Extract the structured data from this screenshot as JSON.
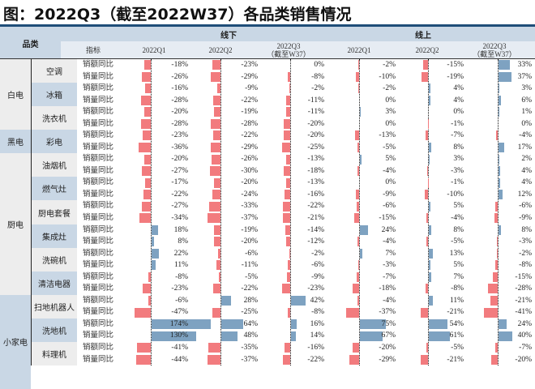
{
  "title": "图：2022Q3（截至2022W37）各品类销售情况",
  "header": {
    "category": "品类",
    "offline": "线下",
    "online": "线上",
    "metric": "指标",
    "columns": [
      {
        "line1": "2022Q1",
        "line2": ""
      },
      {
        "line1": "2022Q2",
        "line2": ""
      },
      {
        "line1": "2022Q3",
        "line2": "（截至W37）"
      },
      {
        "line1": "2022Q1",
        "line2": ""
      },
      {
        "line1": "2022Q2",
        "line2": ""
      },
      {
        "line1": "2022Q3",
        "line2": "（截至W37）"
      }
    ]
  },
  "colors": {
    "negative": "#f27b7e",
    "positive": "#7ea2c1",
    "header_bg": "#c9d7e5",
    "accent_line": "#1f4e79"
  },
  "groups": [
    {
      "name": "白电",
      "rows": 6,
      "bg": "#ededed"
    },
    {
      "name": "黑电",
      "rows": 2,
      "bg": "#c9d7e5"
    },
    {
      "name": "厨电",
      "rows": 12,
      "bg": "#ededed"
    },
    {
      "name": "小家电",
      "rows": 8,
      "bg": "#c9d7e5"
    }
  ],
  "subcategories": [
    {
      "name": "空调",
      "bg": "#ededed"
    },
    {
      "name": "冰箱",
      "bg": "#c9d7e5"
    },
    {
      "name": "洗衣机",
      "bg": "#ededed"
    },
    {
      "name": "彩电",
      "bg": "#c9d7e5"
    },
    {
      "name": "油烟机",
      "bg": "#ededed"
    },
    {
      "name": "燃气灶",
      "bg": "#c9d7e5"
    },
    {
      "name": "厨电套餐",
      "bg": "#ededed"
    },
    {
      "name": "集成灶",
      "bg": "#c9d7e5"
    },
    {
      "name": "洗碗机",
      "bg": "#ededed"
    },
    {
      "name": "清洁电器",
      "bg": "#c9d7e5"
    },
    {
      "name": "扫地机器人",
      "bg": "#ededed"
    },
    {
      "name": "洗地机",
      "bg": "#c9d7e5"
    },
    {
      "name": "料理机",
      "bg": "#ededed"
    }
  ],
  "metrics": [
    "销额同比",
    "销量同比"
  ],
  "chart_data": {
    "type": "table",
    "title": "图：2022Q3（截至2022W37）各品类销售情况",
    "column_groups": [
      "线下",
      "线上"
    ],
    "columns": [
      "线下2022Q1",
      "线下2022Q2",
      "线下2022Q3(截至W37)",
      "线上2022Q1",
      "线上2022Q2",
      "线上2022Q3(截至W37)"
    ],
    "unit": "%",
    "rows": [
      {
        "group": "白电",
        "category": "空调",
        "metric": "销额同比",
        "values": [
          -18,
          -23,
          0,
          -2,
          -15,
          33
        ]
      },
      {
        "group": "白电",
        "category": "空调",
        "metric": "销量同比",
        "values": [
          -26,
          -29,
          -8,
          -10,
          -19,
          37
        ]
      },
      {
        "group": "白电",
        "category": "冰箱",
        "metric": "销额同比",
        "values": [
          -16,
          -9,
          -2,
          -2,
          4,
          3
        ]
      },
      {
        "group": "白电",
        "category": "冰箱",
        "metric": "销量同比",
        "values": [
          -28,
          -22,
          -11,
          0,
          4,
          6
        ]
      },
      {
        "group": "白电",
        "category": "洗衣机",
        "metric": "销额同比",
        "values": [
          -20,
          -19,
          -11,
          3,
          0,
          1
        ]
      },
      {
        "group": "白电",
        "category": "洗衣机",
        "metric": "销量同比",
        "values": [
          -28,
          -28,
          -20,
          0,
          -1,
          0
        ]
      },
      {
        "group": "黑电",
        "category": "彩电",
        "metric": "销额同比",
        "values": [
          -23,
          -22,
          -20,
          -13,
          -7,
          -4
        ]
      },
      {
        "group": "黑电",
        "category": "彩电",
        "metric": "销量同比",
        "values": [
          -36,
          -29,
          -25,
          -5,
          8,
          17
        ]
      },
      {
        "group": "厨电",
        "category": "油烟机",
        "metric": "销额同比",
        "values": [
          -20,
          -26,
          -13,
          5,
          3,
          2
        ]
      },
      {
        "group": "厨电",
        "category": "油烟机",
        "metric": "销量同比",
        "values": [
          -27,
          -30,
          -18,
          -4,
          -3,
          4
        ]
      },
      {
        "group": "厨电",
        "category": "燃气灶",
        "metric": "销额同比",
        "values": [
          -17,
          -20,
          -13,
          0,
          -1,
          4
        ]
      },
      {
        "group": "厨电",
        "category": "燃气灶",
        "metric": "销量同比",
        "values": [
          -22,
          -24,
          -16,
          -9,
          -10,
          12
        ]
      },
      {
        "group": "厨电",
        "category": "厨电套餐",
        "metric": "销额同比",
        "values": [
          -27,
          -33,
          -22,
          -6,
          5,
          -6
        ]
      },
      {
        "group": "厨电",
        "category": "厨电套餐",
        "metric": "销量同比",
        "values": [
          -34,
          -37,
          -21,
          -15,
          -4,
          -9
        ]
      },
      {
        "group": "厨电",
        "category": "集成灶",
        "metric": "销额同比",
        "values": [
          18,
          -19,
          -14,
          24,
          8,
          8
        ]
      },
      {
        "group": "厨电",
        "category": "集成灶",
        "metric": "销量同比",
        "values": [
          8,
          -20,
          -12,
          -4,
          -5,
          -3
        ]
      },
      {
        "group": "厨电",
        "category": "洗碗机",
        "metric": "销额同比",
        "values": [
          22,
          -6,
          -2,
          7,
          13,
          -2
        ]
      },
      {
        "group": "厨电",
        "category": "洗碗机",
        "metric": "销量同比",
        "values": [
          11,
          -11,
          -6,
          -3,
          5,
          -8
        ]
      },
      {
        "group": "小家电",
        "category": "清洁电器",
        "metric": "销额同比",
        "values": [
          -8,
          -5,
          -9,
          -7,
          7,
          -15
        ]
      },
      {
        "group": "小家电",
        "category": "清洁电器",
        "metric": "销量同比",
        "values": [
          -23,
          -22,
          -23,
          -18,
          -8,
          -28
        ]
      },
      {
        "group": "小家电",
        "category": "扫地机器人",
        "metric": "销额同比",
        "values": [
          -6,
          28,
          42,
          -4,
          11,
          -21
        ]
      },
      {
        "group": "小家电",
        "category": "扫地机器人",
        "metric": "销量同比",
        "values": [
          -47,
          -25,
          -8,
          -37,
          -21,
          -41
        ]
      },
      {
        "group": "小家电",
        "category": "洗地机",
        "metric": "销额同比",
        "values": [
          174,
          64,
          16,
          75,
          54,
          24
        ]
      },
      {
        "group": "小家电",
        "category": "洗地机",
        "metric": "销量同比",
        "values": [
          130,
          48,
          14,
          67,
          61,
          40
        ]
      },
      {
        "group": "小家电",
        "category": "料理机",
        "metric": "销额同比",
        "values": [
          -41,
          -35,
          -16,
          -20,
          -5,
          -7
        ]
      },
      {
        "group": "小家电",
        "category": "料理机",
        "metric": "销量同比",
        "values": [
          -44,
          -37,
          -22,
          -29,
          -21,
          -20
        ]
      }
    ]
  }
}
